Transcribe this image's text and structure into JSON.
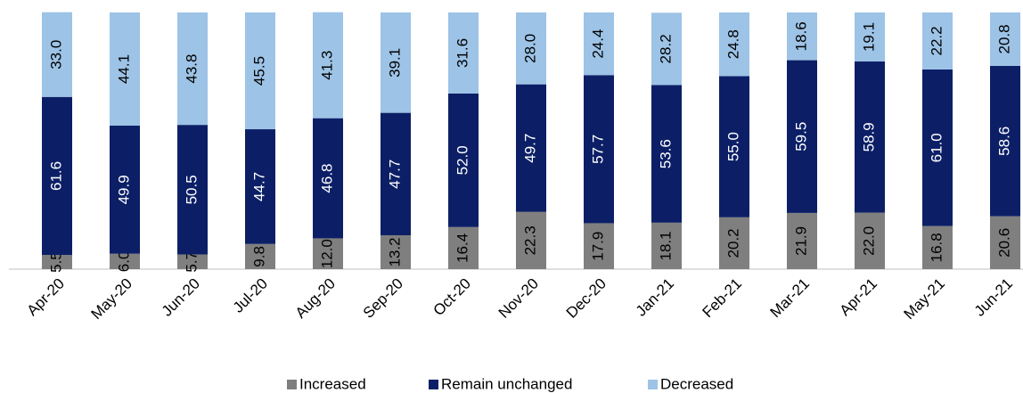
{
  "chart_data": {
    "type": "stacked-bar",
    "categories": [
      "Apr-20",
      "May-20",
      "Jun-20",
      "Jul-20",
      "Aug-20",
      "Sep-20",
      "Oct-20",
      "Nov-20",
      "Dec-20",
      "Jan-21",
      "Feb-21",
      "Mar-21",
      "Apr-21",
      "May-21",
      "Jun-21"
    ],
    "ylim": [
      0,
      100
    ],
    "series": [
      {
        "name": "Increased",
        "color": "#7f7f7f",
        "label_color": "#000000",
        "values": [
          5.5,
          6.0,
          5.7,
          9.8,
          12.0,
          13.2,
          16.4,
          22.3,
          17.9,
          18.1,
          20.2,
          21.9,
          22.0,
          16.8,
          20.6
        ],
        "value_labels": [
          "5.5",
          "6.0",
          "5.7",
          "9.8",
          "12.0",
          "13.2",
          "16.4",
          "22.3",
          "17.9",
          "18.1",
          "20.2",
          "21.9",
          "22.0",
          "16.8",
          "20.6"
        ]
      },
      {
        "name": "Remain unchanged",
        "color": "#0c1f66",
        "label_color": "#ffffff",
        "values": [
          61.6,
          49.9,
          50.5,
          44.7,
          46.8,
          47.7,
          52.0,
          49.7,
          57.7,
          53.6,
          55.0,
          59.5,
          58.9,
          61.0,
          58.6
        ],
        "value_labels": [
          "61.6",
          "49.9",
          "50.5",
          "44.7",
          "46.8",
          "47.7",
          "52.0",
          "49.7",
          "57.7",
          "53.6",
          "55.0",
          "59.5",
          "58.9",
          "61.0",
          "58.6"
        ]
      },
      {
        "name": "Decreased",
        "color": "#9dc3e6",
        "label_color": "#000000",
        "values": [
          33.0,
          44.1,
          43.8,
          45.5,
          41.3,
          39.1,
          31.6,
          28.0,
          24.4,
          28.2,
          24.8,
          18.6,
          19.1,
          22.2,
          20.8
        ],
        "value_labels": [
          "33.0",
          "44.1",
          "43.8",
          "45.5",
          "41.3",
          "39.1",
          "31.6",
          "28.0",
          "24.4",
          "28.2",
          "24.8",
          "18.6",
          "19.1",
          "22.2",
          "20.8"
        ]
      }
    ]
  }
}
